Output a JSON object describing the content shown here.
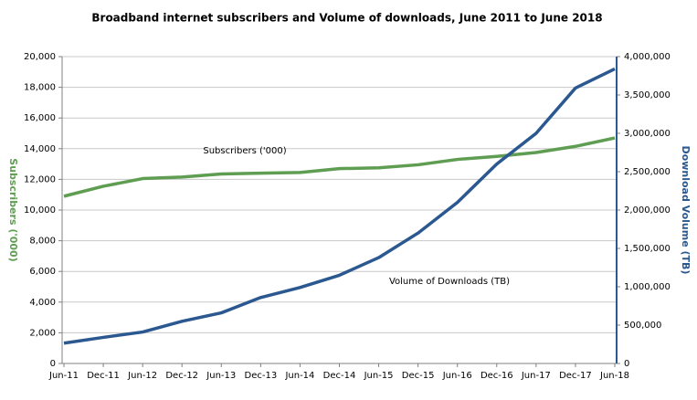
{
  "chart_data": {
    "type": "line",
    "title": "Broadband internet subscribers and Volume of downloads, June 2011 to June 2018",
    "categories": [
      "Jun-11",
      "Dec-11",
      "Jun-12",
      "Dec-12",
      "Jun-13",
      "Dec-13",
      "Jun-14",
      "Dec-14",
      "Jun-15",
      "Dec-15",
      "Jun-16",
      "Dec-16",
      "Jun-17",
      "Dec-17",
      "Jun-18"
    ],
    "series": [
      {
        "name": "Subscribers ('000)",
        "color": "#5f9e52",
        "values": [
          10900,
          11550,
          12050,
          12150,
          12350,
          12400,
          12450,
          12700,
          12750,
          12950,
          13300,
          13500,
          13750,
          14150,
          14700
        ]
      },
      {
        "name": "Volume of Downloads (TB)",
        "color": "#2b5890",
        "axis": "y2",
        "values": [
          265000,
          340000,
          410000,
          550000,
          660000,
          860000,
          990000,
          1150000,
          1380000,
          1700000,
          2100000,
          2600000,
          3000000,
          3590000,
          3840000
        ]
      }
    ],
    "ylabel": "Subscribers ('000)",
    "y2label": "Download Volume (TB)",
    "ylim": [
      0,
      20000
    ],
    "yticks": [
      0,
      {
        "value": 2000,
        "label": "2,000"
      },
      {
        "value": 4000,
        "label": "4,000"
      },
      {
        "value": 6000,
        "label": "6,000"
      },
      {
        "value": 8000,
        "label": "8,000"
      },
      {
        "value": 10000,
        "label": "10,000"
      },
      {
        "value": 12000,
        "label": "12,000"
      },
      {
        "value": 14000,
        "label": "14,000"
      },
      {
        "value": 16000,
        "label": "16,000"
      },
      {
        "value": 18000,
        "label": "18,000"
      },
      {
        "value": 20000,
        "label": "20,000"
      }
    ],
    "y2lim": [
      0,
      4000000
    ],
    "y2ticks": [
      0,
      {
        "value": 500000,
        "label": "500,000"
      },
      {
        "value": 1000000,
        "label": "1,000,000"
      },
      {
        "value": 1500000,
        "label": "1,500,000"
      },
      {
        "value": 2000000,
        "label": "2,000,000"
      },
      {
        "value": 2500000,
        "label": "2,500,000"
      },
      {
        "value": 3000000,
        "label": "3,000,000"
      },
      {
        "value": 3500000,
        "label": "3,500,000"
      },
      {
        "value": 4000000,
        "label": "4,000,000"
      }
    ],
    "grid": true
  }
}
